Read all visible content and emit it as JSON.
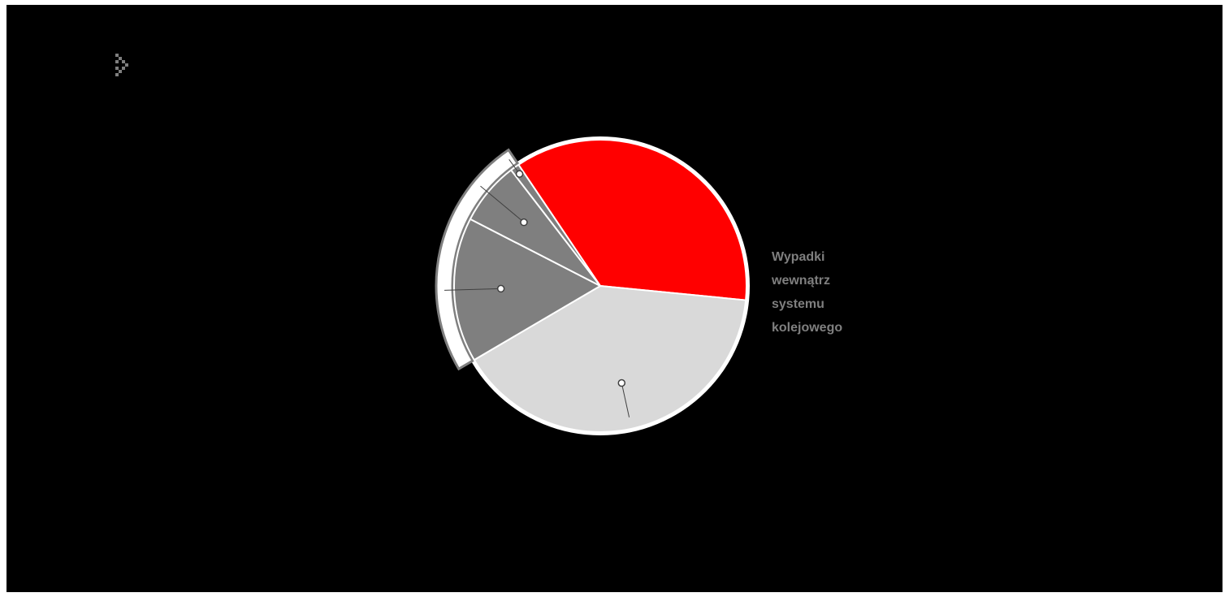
{
  "nav": {
    "icon": "chevron-right-dotted-icon",
    "color": "#7f7f7f"
  },
  "chart_data": {
    "type": "pie",
    "title": "",
    "legend": "none",
    "background": "#000000",
    "slices": [
      {
        "value": 36,
        "color": "#ff0000"
      },
      {
        "value": 40,
        "color": "#d9d9d9"
      },
      {
        "value": 16,
        "color": "#7f7f7f",
        "group": 0
      },
      {
        "value": 7,
        "color": "#7f7f7f",
        "group": 0
      },
      {
        "value": 1,
        "color": "#7f7f7f",
        "group": 0
      }
    ],
    "groups": [
      {
        "label": "Wypadki\nwewnątrz\nsystemu\nkolejowego",
        "color": "#7f7f7f"
      }
    ]
  }
}
